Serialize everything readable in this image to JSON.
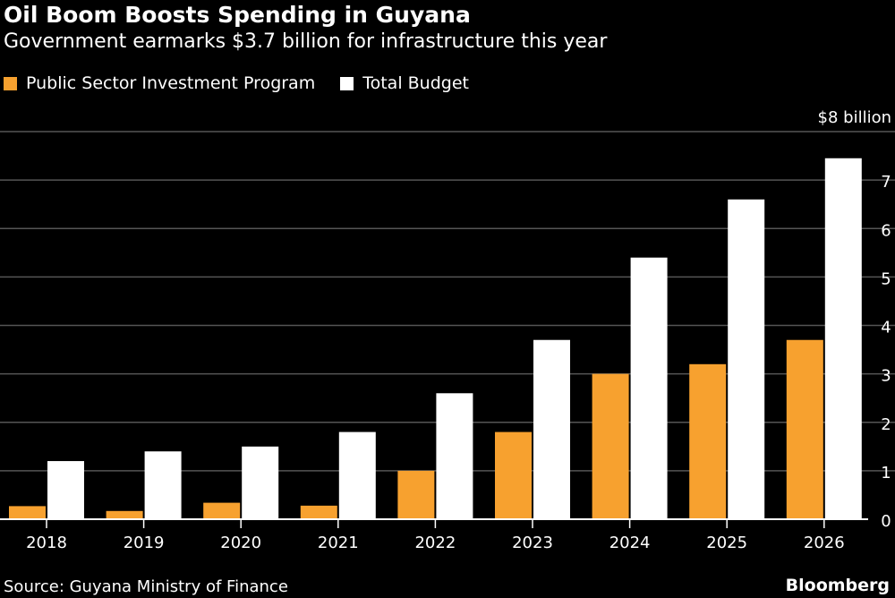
{
  "title": "Oil Boom Boosts Spending in Guyana",
  "subtitle": "Government earmarks $3.7 billion for infrastructure this year",
  "source": "Source: Guyana Ministry of Finance",
  "brand": "Bloomberg",
  "chart_data": {
    "type": "bar",
    "categories": [
      "2018",
      "2019",
      "2020",
      "2021",
      "2022",
      "2023",
      "2024",
      "2025",
      "2026"
    ],
    "series": [
      {
        "name": "Public Sector Investment Program",
        "color": "#f7a12f",
        "values": [
          0.27,
          0.17,
          0.34,
          0.28,
          1.0,
          1.8,
          3.0,
          3.2,
          3.7
        ]
      },
      {
        "name": "Total Budget",
        "color": "#ffffff",
        "values": [
          1.2,
          1.4,
          1.5,
          1.8,
          2.6,
          3.7,
          5.4,
          6.6,
          7.45
        ]
      }
    ],
    "yticks": [
      "0",
      "1",
      "2",
      "3",
      "4",
      "5",
      "6",
      "7",
      "$8 billion"
    ],
    "ylim": [
      0,
      8
    ],
    "grid": true,
    "legend": "top-left",
    "yaxis_side": "right"
  }
}
